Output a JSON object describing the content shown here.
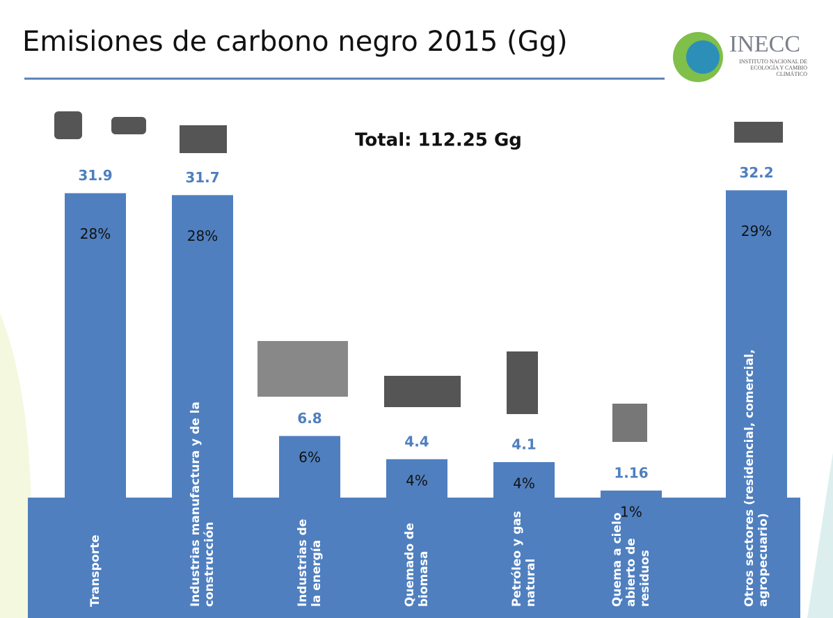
{
  "chart_data": {
    "type": "bar",
    "title": "Emisiones de carbono negro 2015 (Gg)",
    "total_label": "Total: 112.25 Gg",
    "logo": {
      "name": "INECC",
      "subtitle": "Instituto Nacional de Ecología y Cambio Climático"
    },
    "categories": [
      "Transporte",
      "Industrias manufactura y de la construcción",
      "Industrias de la energía",
      "Quemado de biomasa",
      "Petróleo y gas natural",
      "Quema a cielo abierto de residuos",
      "Otros sectores (residencial, comercial, agropecuario)"
    ],
    "values": [
      31.9,
      31.7,
      6.8,
      4.4,
      4.1,
      1.16,
      32.2
    ],
    "percent_labels": [
      "28%",
      "28%",
      "6%",
      "4%",
      "4%",
      "1%",
      "29%"
    ],
    "color": "#4f7fbf"
  }
}
